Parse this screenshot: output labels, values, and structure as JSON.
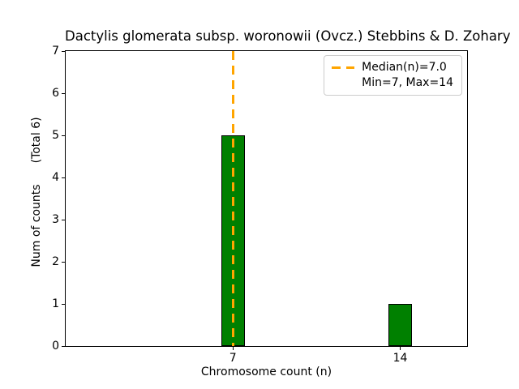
{
  "figure": {
    "title": "Dactylis glomerata subsp. woronowii (Ovcz.) Stebbins & D. Zohary",
    "xlabel": "Chromosome count (n)",
    "ylabel": "Num of counts",
    "ylabel_note": "(Total 6)",
    "legend": {
      "items": [
        {
          "label": "Median(n)=7.0",
          "swatch": "orange-dashed-line"
        },
        {
          "label": "Min=7, Max=14",
          "swatch": "none"
        }
      ]
    }
  },
  "chart_data": {
    "type": "bar",
    "title": "Dactylis glomerata subsp. woronowii (Ovcz.) Stebbins & D. Zohary",
    "xlabel": "Chromosome count (n)",
    "ylabel": "Num of counts (Total 6)",
    "categories": [
      7,
      14
    ],
    "values": [
      5,
      1
    ],
    "total_counts": 6,
    "bar_width": 1,
    "bar_color": "#008000",
    "bar_edge_color": "#000000",
    "median_line": {
      "x": 7.0,
      "color": "#FFA500",
      "style": "dashed",
      "label": "Median(n)=7.0"
    },
    "stats": {
      "median": 7.0,
      "min": 7,
      "max": 14
    },
    "xlim": [
      0,
      16.8
    ],
    "ylim": [
      0,
      7
    ],
    "xticks": [
      7,
      14
    ],
    "yticks": [
      0,
      1,
      2,
      3,
      4,
      5,
      6,
      7
    ],
    "grid": false,
    "legend_position": "upper right"
  }
}
